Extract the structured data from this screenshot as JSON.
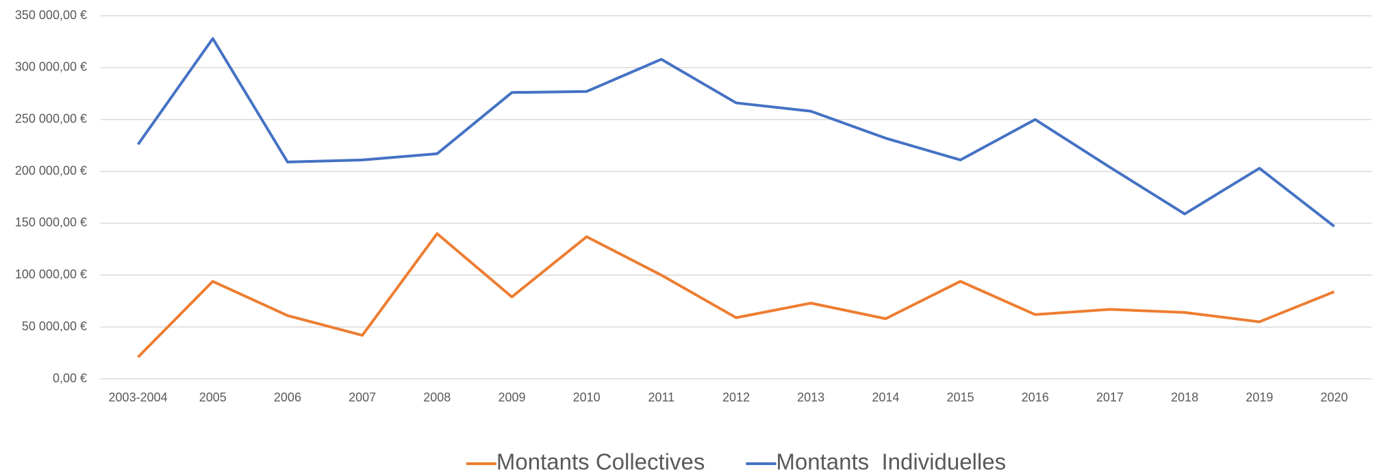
{
  "chart_data": {
    "type": "line",
    "categories": [
      "2003-2004",
      "2005",
      "2006",
      "2007",
      "2008",
      "2009",
      "2010",
      "2011",
      "2012",
      "2013",
      "2014",
      "2015",
      "2016",
      "2017",
      "2018",
      "2019",
      "2020"
    ],
    "series": [
      {
        "name": "Montants Collectives",
        "color": "#ed7d31",
        "values": [
          21000,
          94000,
          61000,
          42000,
          140000,
          79000,
          137000,
          100000,
          59000,
          73000,
          58000,
          94000,
          62000,
          67000,
          64000,
          55000,
          84000
        ]
      },
      {
        "name": "Montants  Individuelles",
        "color": "#4472c4",
        "values": [
          226000,
          328000,
          209000,
          211000,
          217000,
          276000,
          277000,
          308000,
          266000,
          258000,
          232000,
          211000,
          250000,
          204000,
          159000,
          203000,
          147000
        ]
      }
    ],
    "ylim": [
      0,
      350000
    ],
    "yticks": [
      {
        "value": 0,
        "label": "0,00 €"
      },
      {
        "value": 50000,
        "label": "50 000,00 €"
      },
      {
        "value": 100000,
        "label": "100 000,00 €"
      },
      {
        "value": 150000,
        "label": "150 000,00 €"
      },
      {
        "value": 200000,
        "label": "200 000,00 €"
      },
      {
        "value": 250000,
        "label": "250 000,00 €"
      },
      {
        "value": 300000,
        "label": "300 000,00 €"
      },
      {
        "value": 350000,
        "label": "350 000,00 €"
      }
    ],
    "grid": true,
    "legend": "bottom"
  }
}
